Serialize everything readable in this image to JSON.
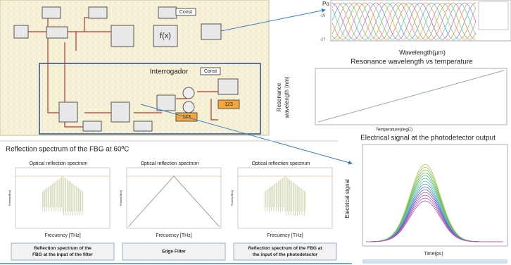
{
  "diagram": {
    "blocks": {
      "const_top": "Const",
      "fx": "f(x)",
      "const_bottom": "Const",
      "display_1": "123",
      "display_2": "123"
    },
    "interrogator_label": "Interrogador"
  },
  "top_chart": {
    "y_label": "Po",
    "y_tick_labels": [
      "-15",
      "-17"
    ],
    "x_label": "Wavelength(µm)"
  },
  "resonance_chart": {
    "title": "Resonance wavelength vs temperature",
    "y_label": [
      "Resonance",
      "wavelength (nm)"
    ],
    "x_label": "Temperature(degC)"
  },
  "signal_chart": {
    "title": "Electrical signal at the photodetector output",
    "y_label": "Electrical signal",
    "x_label": "Time(ps)"
  },
  "spectrum_section": {
    "title": "Reflection spectrum of the FBG at 60ºC",
    "panels": [
      {
        "title": "Optical reflection spectrum",
        "x_label": "Frecuency [THz]",
        "y_label": "Power(dBm)",
        "caption": [
          "Reflection spectrum of the",
          "FBG at the input of the filter"
        ]
      },
      {
        "title": "Optical reflection spectrum",
        "x_label": "Frecuency [THz]",
        "y_label": "Power(dBm)",
        "caption": [
          "Edge Filter"
        ]
      },
      {
        "title": "Optical reflection spectrum",
        "x_label": "Frecuency [THz]",
        "y_label": "Power(dBm)",
        "caption": [
          "Reflection spectrum of the FBG at",
          "the input of the photodetector"
        ]
      }
    ]
  }
}
